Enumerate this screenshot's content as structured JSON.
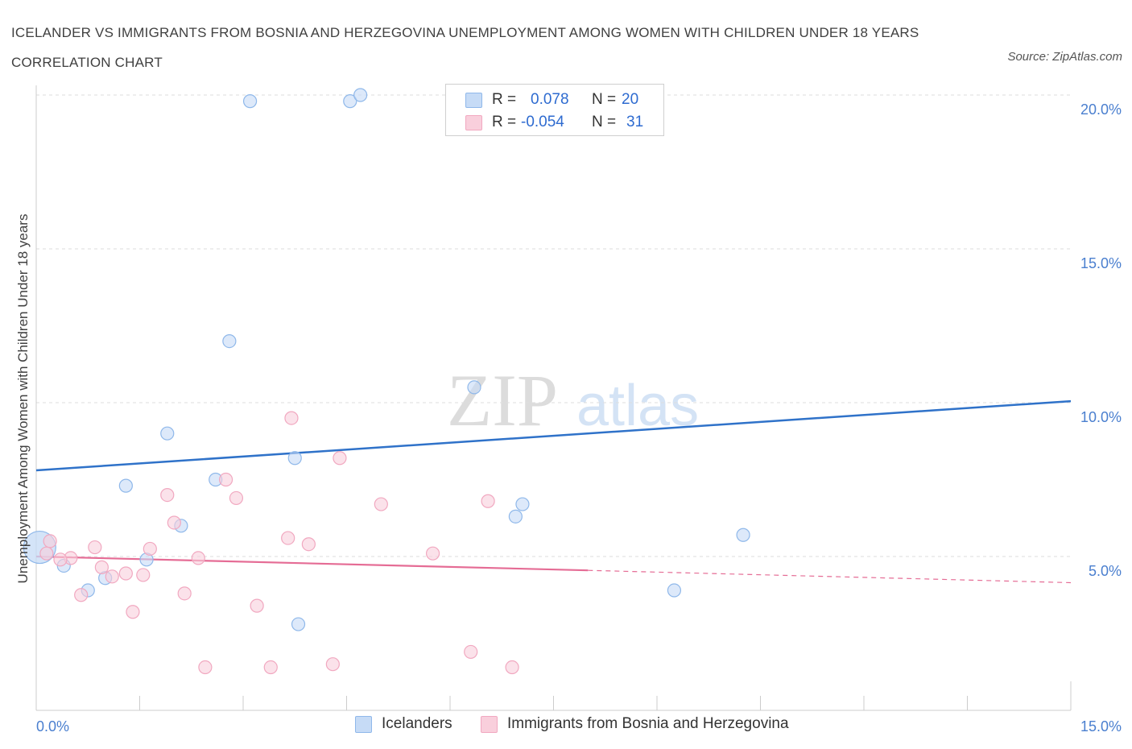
{
  "title": "ICELANDER VS IMMIGRANTS FROM BOSNIA AND HERZEGOVINA UNEMPLOYMENT AMONG WOMEN WITH CHILDREN UNDER 18 YEARS CORRELATION CHART",
  "source": "Source: ZipAtlas.com",
  "watermark": {
    "zip": "ZIP",
    "atlas": "atlas"
  },
  "legend": {
    "r_label": "R =",
    "n_label": "N =",
    "rows": [
      {
        "r": "0.078",
        "n": "20"
      },
      {
        "r": "-0.054",
        "n": "31"
      }
    ]
  },
  "chart_data": {
    "type": "scatter",
    "title": "ICELANDER VS IMMIGRANTS FROM BOSNIA AND HERZEGOVINA UNEMPLOYMENT AMONG WOMEN WITH CHILDREN UNDER 18 YEARS CORRELATION CHART",
    "xlabel": "",
    "ylabel": "Unemployment Among Women with Children Under 18 years",
    "xlim": [
      0,
      15
    ],
    "ylim": [
      0,
      20
    ],
    "x_tick_labels": [
      "0.0%",
      "15.0%"
    ],
    "y_ticks": [
      5,
      10,
      15,
      20
    ],
    "y_tick_labels": [
      "5.0%",
      "10.0%",
      "15.0%",
      "20.0%"
    ],
    "grid": true,
    "legend_position": "bottom",
    "series": [
      {
        "name": "Icelanders",
        "color": "#8fb8ea",
        "fill": "#c6dbf6",
        "r": 0.078,
        "n": 20,
        "trend": {
          "x": [
            0,
            15
          ],
          "y": [
            7.8,
            10.05
          ]
        },
        "points": [
          {
            "x": 3.1,
            "y": 19.8
          },
          {
            "x": 4.55,
            "y": 19.8
          },
          {
            "x": 4.7,
            "y": 20.0
          },
          {
            "x": 2.8,
            "y": 12.0
          },
          {
            "x": 6.35,
            "y": 10.5
          },
          {
            "x": 1.9,
            "y": 9.0
          },
          {
            "x": 3.75,
            "y": 8.2
          },
          {
            "x": 1.3,
            "y": 7.3
          },
          {
            "x": 2.6,
            "y": 7.5
          },
          {
            "x": 7.05,
            "y": 6.7
          },
          {
            "x": 6.95,
            "y": 6.3
          },
          {
            "x": 2.1,
            "y": 6.0
          },
          {
            "x": 10.25,
            "y": 5.7
          },
          {
            "x": 0.05,
            "y": 5.3
          },
          {
            "x": 1.6,
            "y": 4.9
          },
          {
            "x": 0.4,
            "y": 4.7
          },
          {
            "x": 1.0,
            "y": 4.3
          },
          {
            "x": 0.75,
            "y": 3.9
          },
          {
            "x": 9.25,
            "y": 3.9
          },
          {
            "x": 3.8,
            "y": 2.8
          }
        ]
      },
      {
        "name": "Immigrants from Bosnia and Herzegovina",
        "color": "#f1a8c0",
        "fill": "#f9cfdc",
        "r": -0.054,
        "n": 31,
        "trend": {
          "x": [
            0,
            8.0,
            15
          ],
          "y": [
            5.0,
            4.55,
            4.15
          ],
          "solid_until": 8.0
        },
        "points": [
          {
            "x": 3.7,
            "y": 9.5
          },
          {
            "x": 4.4,
            "y": 8.2
          },
          {
            "x": 2.75,
            "y": 7.5
          },
          {
            "x": 1.9,
            "y": 7.0
          },
          {
            "x": 2.9,
            "y": 6.9
          },
          {
            "x": 5.0,
            "y": 6.7
          },
          {
            "x": 6.55,
            "y": 6.8
          },
          {
            "x": 2.0,
            "y": 6.1
          },
          {
            "x": 3.65,
            "y": 5.6
          },
          {
            "x": 3.95,
            "y": 5.4
          },
          {
            "x": 0.2,
            "y": 5.5
          },
          {
            "x": 0.85,
            "y": 5.3
          },
          {
            "x": 1.65,
            "y": 5.25
          },
          {
            "x": 5.75,
            "y": 5.1
          },
          {
            "x": 0.5,
            "y": 4.95
          },
          {
            "x": 0.35,
            "y": 4.9
          },
          {
            "x": 2.35,
            "y": 4.95
          },
          {
            "x": 0.95,
            "y": 4.65
          },
          {
            "x": 1.3,
            "y": 4.45
          },
          {
            "x": 1.55,
            "y": 4.4
          },
          {
            "x": 1.1,
            "y": 4.35
          },
          {
            "x": 0.65,
            "y": 3.75
          },
          {
            "x": 2.15,
            "y": 3.8
          },
          {
            "x": 3.2,
            "y": 3.4
          },
          {
            "x": 1.4,
            "y": 3.2
          },
          {
            "x": 6.3,
            "y": 1.9
          },
          {
            "x": 4.3,
            "y": 1.5
          },
          {
            "x": 2.45,
            "y": 1.4
          },
          {
            "x": 3.4,
            "y": 1.4
          },
          {
            "x": 6.9,
            "y": 1.4
          },
          {
            "x": 0.15,
            "y": 5.1
          }
        ]
      }
    ]
  }
}
